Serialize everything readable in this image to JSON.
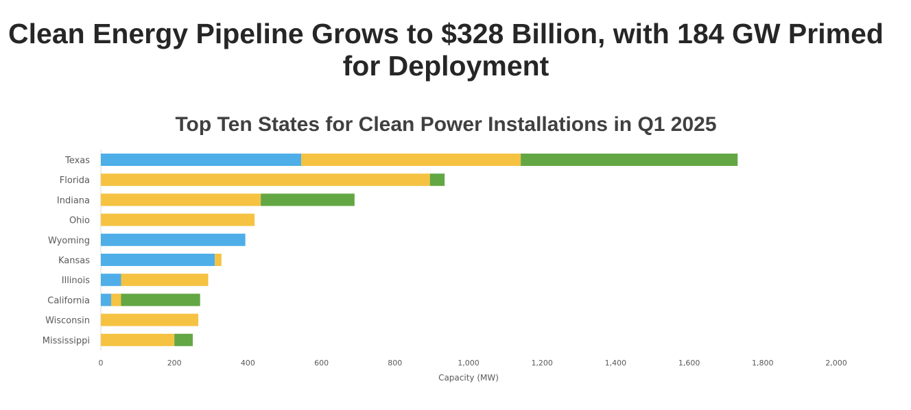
{
  "page": {
    "headline": "Clean Energy Pipeline Grows to $328 Billion, with 184 GW Primed for Deployment"
  },
  "chart_data": {
    "type": "bar",
    "orientation": "horizontal",
    "stacked": true,
    "title": "Top Ten States for Clean Power Installations in Q1 2025",
    "xlabel": "Capacity (MW)",
    "ylabel": "",
    "xlim": [
      0,
      2000
    ],
    "xticks": [
      0,
      200,
      400,
      600,
      800,
      1000,
      1200,
      1400,
      1600,
      1800,
      2000
    ],
    "xtick_labels": [
      "0",
      "200",
      "400",
      "600",
      "800",
      "1,000",
      "1,200",
      "1,400",
      "1,600",
      "1,800",
      "2,000"
    ],
    "grid": false,
    "legend": "none",
    "categories": [
      "Texas",
      "Florida",
      "Indiana",
      "Ohio",
      "Wyoming",
      "Kansas",
      "Illinois",
      "California",
      "Wisconsin",
      "Mississippi"
    ],
    "series": [
      {
        "color": "#4eaee8",
        "values": [
          545,
          0,
          0,
          0,
          393,
          310,
          55,
          28,
          0,
          0
        ]
      },
      {
        "color": "#f5c242",
        "values": [
          597,
          895,
          435,
          418,
          0,
          18,
          237,
          27,
          265,
          200
        ]
      },
      {
        "color": "#62a744",
        "values": [
          590,
          40,
          255,
          0,
          0,
          0,
          0,
          215,
          0,
          50
        ]
      }
    ]
  }
}
